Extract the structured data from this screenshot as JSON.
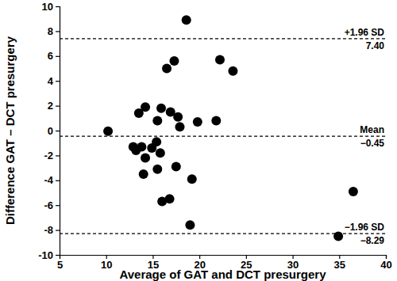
{
  "chart_data": {
    "type": "scatter",
    "x_label": "Average of GAT and DCT presurgery",
    "y_label": "Difference GAT – DCT presurgery",
    "x": [
      10.2,
      12.9,
      13.2,
      13.5,
      13.8,
      14.0,
      14.2,
      14.2,
      14.9,
      15.4,
      15.5,
      15.5,
      15.8,
      15.9,
      16.0,
      16.5,
      16.8,
      16.9,
      17.3,
      17.7,
      17.5,
      17.9,
      18.6,
      19.0,
      19.2,
      19.8,
      21.8,
      22.2,
      23.6,
      34.9,
      36.5
    ],
    "values": [
      -0.05,
      -1.3,
      -1.6,
      1.4,
      -1.3,
      -3.5,
      1.9,
      -2.2,
      -1.4,
      -0.9,
      0.8,
      -3.1,
      -1.8,
      1.8,
      -5.7,
      5.0,
      -5.5,
      1.5,
      5.6,
      1.1,
      -2.9,
      0.3,
      8.9,
      -7.6,
      -3.9,
      0.7,
      0.8,
      5.7,
      4.8,
      -8.5,
      -4.9
    ],
    "color": "#000000",
    "marker": "circle",
    "xlim": [
      5,
      40
    ],
    "xticks": [
      5,
      10,
      15,
      20,
      25,
      30,
      35,
      40
    ],
    "ylim": [
      -10,
      10
    ],
    "yticks": [
      -10,
      -8,
      -6,
      -4,
      -2,
      0,
      2,
      4,
      6,
      8,
      10
    ],
    "grid": false,
    "reference_lines": [
      {
        "value": 7.4,
        "label": "+1.96 SD",
        "value_label": "7.40"
      },
      {
        "value": -0.45,
        "label": "Mean",
        "value_label": "−0.45"
      },
      {
        "value": -8.29,
        "label": "−1.96 SD",
        "value_label": "−8.29"
      }
    ]
  }
}
